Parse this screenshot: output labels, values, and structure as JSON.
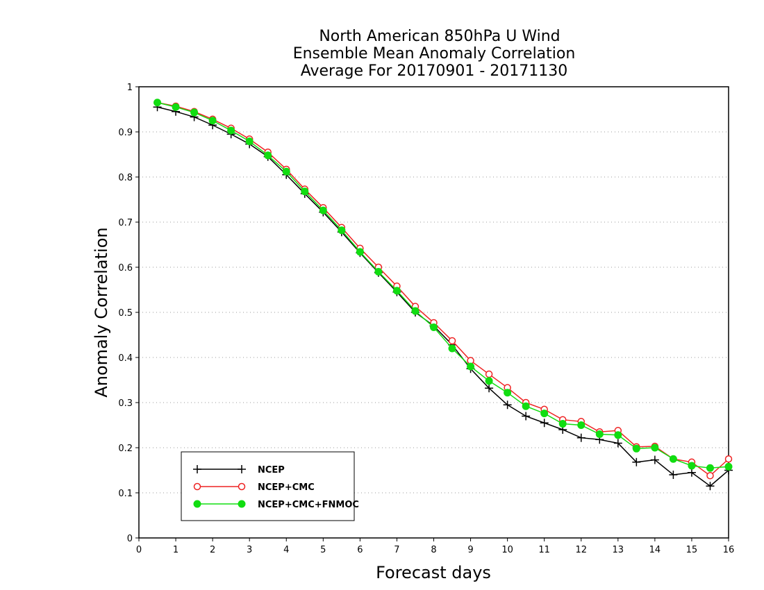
{
  "chart_data": {
    "type": "line",
    "title_lines": [
      "North American 850hPa U Wind",
      "Ensemble Mean Anomaly Correlation",
      "Average For 20170901 - 20171130"
    ],
    "xlabel": "Forecast days",
    "ylabel": "Anomaly Correlation",
    "xlim": [
      0,
      16
    ],
    "ylim": [
      0,
      1
    ],
    "xticks": [
      0,
      1,
      2,
      3,
      4,
      5,
      6,
      7,
      8,
      9,
      10,
      11,
      12,
      13,
      14,
      15,
      16
    ],
    "xtick_labels": [
      "0",
      "1",
      "2",
      "3",
      "4",
      "5",
      "6",
      "7",
      "8",
      "9",
      "10",
      "11",
      "12",
      "13",
      "14",
      "15",
      "16"
    ],
    "yticks": [
      0,
      0.1,
      0.2,
      0.3,
      0.4,
      0.5,
      0.6,
      0.7,
      0.8,
      0.9,
      1
    ],
    "ytick_labels": [
      "0",
      "0.1",
      "0.2",
      "0.3",
      "0.4",
      "0.5",
      "0.6",
      "0.7",
      "0.8",
      "0.9",
      "1"
    ],
    "grid": "horizontal dotted",
    "legend_position": "bottom-left",
    "x": [
      0.5,
      1,
      1.5,
      2,
      2.5,
      3,
      3.5,
      4,
      4.5,
      5,
      5.5,
      6,
      6.5,
      7,
      7.5,
      8,
      8.5,
      9,
      9.5,
      10,
      10.5,
      11,
      11.5,
      12,
      12.5,
      13,
      13.5,
      14,
      14.5,
      15,
      15.5,
      16
    ],
    "series": [
      {
        "name": "NCEP",
        "color": "#000000",
        "marker": "plus",
        "values": [
          0.955,
          0.945,
          0.933,
          0.915,
          0.895,
          0.873,
          0.845,
          0.805,
          0.763,
          0.722,
          0.678,
          0.632,
          0.588,
          0.545,
          0.5,
          0.47,
          0.428,
          0.375,
          0.332,
          0.295,
          0.27,
          0.255,
          0.24,
          0.222,
          0.218,
          0.21,
          0.168,
          0.173,
          0.14,
          0.145,
          0.115,
          0.15
        ]
      },
      {
        "name": "NCEP+CMC",
        "color": "#ee2222",
        "marker": "open-circle",
        "values": [
          0.965,
          0.957,
          0.945,
          0.928,
          0.908,
          0.884,
          0.855,
          0.817,
          0.773,
          0.732,
          0.688,
          0.642,
          0.6,
          0.558,
          0.513,
          0.477,
          0.437,
          0.393,
          0.363,
          0.333,
          0.3,
          0.285,
          0.262,
          0.258,
          0.235,
          0.238,
          0.202,
          0.203,
          0.175,
          0.168,
          0.138,
          0.175
        ]
      },
      {
        "name": "NCEP+CMC+FNMOC",
        "color": "#11dd11",
        "marker": "filled-circle",
        "values": [
          0.965,
          0.955,
          0.943,
          0.925,
          0.903,
          0.879,
          0.848,
          0.812,
          0.768,
          0.726,
          0.682,
          0.634,
          0.59,
          0.548,
          0.503,
          0.467,
          0.42,
          0.38,
          0.348,
          0.322,
          0.292,
          0.276,
          0.253,
          0.25,
          0.23,
          0.228,
          0.198,
          0.2,
          0.175,
          0.16,
          0.155,
          0.158
        ]
      }
    ]
  }
}
